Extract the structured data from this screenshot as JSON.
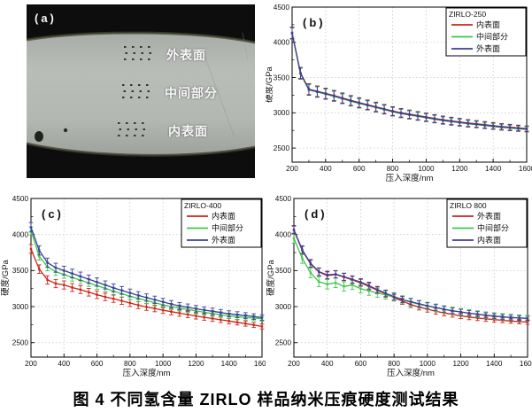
{
  "figure": {
    "caption": "图 4  不同氢含量 ZIRLO 样品纳米压痕硬度测试结果"
  },
  "panel_a": {
    "label": "(a)",
    "regions": [
      {
        "label": "外表面"
      },
      {
        "label": "中间部分"
      },
      {
        "label": "内表面"
      }
    ]
  },
  "colors": {
    "red": "#cf2318",
    "green": "#3ec84a",
    "blue": "#3b3e9b",
    "grid": "#c9c9c9",
    "axis": "#000000"
  },
  "chart_data": [
    {
      "id": "zirlo-250",
      "type": "line",
      "panel_label": "(b)",
      "legend_title": "ZIRLO-250",
      "legend_position": "top-right",
      "grid": true,
      "xlabel": "压入深度/nm",
      "ylabel": "硬度/GPa",
      "xlim": [
        200,
        1600
      ],
      "ylim": [
        2300,
        4500
      ],
      "xticks": [
        200,
        400,
        600,
        800,
        1000,
        1200,
        1400,
        1600
      ],
      "yticks": [
        2500,
        3000,
        3500,
        4000,
        4500
      ],
      "x": [
        200,
        250,
        300,
        350,
        400,
        450,
        500,
        550,
        600,
        650,
        700,
        750,
        800,
        850,
        900,
        950,
        1000,
        1050,
        1100,
        1150,
        1200,
        1250,
        1300,
        1350,
        1400,
        1450,
        1500,
        1550,
        1600
      ],
      "series": [
        {
          "name": "内表面",
          "color": "red",
          "values": [
            4136,
            3566,
            3336,
            3306,
            3276,
            3246,
            3211,
            3176,
            3146,
            3116,
            3086,
            3056,
            3026,
            3001,
            2981,
            2961,
            2941,
            2921,
            2901,
            2886,
            2871,
            2856,
            2844,
            2831,
            2818,
            2806,
            2796,
            2786,
            2776
          ],
          "err": {
            "start": 80,
            "end": 38
          }
        },
        {
          "name": "中间部分",
          "color": "green",
          "values": [
            4124,
            3554,
            3324,
            3294,
            3264,
            3234,
            3199,
            3164,
            3134,
            3104,
            3074,
            3044,
            3014,
            2989,
            2969,
            2949,
            2929,
            2909,
            2889,
            2874,
            2859,
            2844,
            2832,
            2819,
            2806,
            2794,
            2784,
            2774,
            2764
          ],
          "err": {
            "start": 78,
            "end": 36
          }
        },
        {
          "name": "外表面",
          "color": "blue",
          "values": [
            4130,
            3560,
            3330,
            3300,
            3270,
            3240,
            3205,
            3170,
            3140,
            3110,
            3080,
            3050,
            3020,
            2995,
            2975,
            2955,
            2935,
            2915,
            2895,
            2880,
            2865,
            2850,
            2838,
            2825,
            2812,
            2800,
            2790,
            2780,
            2770
          ],
          "err": {
            "start": 82,
            "end": 40
          }
        }
      ]
    },
    {
      "id": "zirlo-400",
      "type": "line",
      "panel_label": "(c)",
      "legend_title": "ZIRLO-400",
      "legend_position": "top-right",
      "grid": true,
      "xlabel": "压入深度/nm",
      "ylabel": "硬度/GPa",
      "xlim": [
        200,
        1600
      ],
      "ylim": [
        2300,
        4500
      ],
      "xticks": [
        200,
        400,
        600,
        800,
        1000,
        1200,
        1400,
        1600
      ],
      "yticks": [
        2500,
        3000,
        3500,
        4000,
        4500
      ],
      "x": [
        200,
        250,
        300,
        350,
        400,
        450,
        500,
        550,
        600,
        650,
        700,
        750,
        800,
        850,
        900,
        950,
        1000,
        1050,
        1100,
        1150,
        1200,
        1250,
        1300,
        1350,
        1400,
        1450,
        1500,
        1550,
        1600
      ],
      "series": [
        {
          "name": "内表面",
          "color": "red",
          "values": [
            3800,
            3520,
            3370,
            3320,
            3300,
            3265,
            3235,
            3200,
            3165,
            3135,
            3110,
            3080,
            3050,
            3020,
            2995,
            2975,
            2950,
            2930,
            2910,
            2890,
            2870,
            2852,
            2835,
            2818,
            2800,
            2782,
            2765,
            2745,
            2725
          ],
          "err": {
            "start": 60,
            "end": 34
          }
        },
        {
          "name": "中间部分",
          "color": "green",
          "values": [
            4050,
            3700,
            3550,
            3485,
            3445,
            3405,
            3365,
            3330,
            3290,
            3255,
            3215,
            3180,
            3145,
            3115,
            3085,
            3055,
            3025,
            3000,
            2980,
            2960,
            2940,
            2922,
            2905,
            2888,
            2872,
            2860,
            2850,
            2840,
            2832
          ],
          "err": {
            "start": 55,
            "end": 34
          }
        },
        {
          "name": "外表面",
          "color": "blue",
          "values": [
            4100,
            3780,
            3610,
            3540,
            3500,
            3460,
            3420,
            3380,
            3340,
            3300,
            3260,
            3225,
            3190,
            3155,
            3125,
            3095,
            3065,
            3035,
            3010,
            2990,
            2970,
            2952,
            2935,
            2918,
            2900,
            2888,
            2876,
            2862,
            2848
          ],
          "err": {
            "start": 65,
            "end": 38
          }
        }
      ]
    },
    {
      "id": "zirlo-800",
      "type": "line",
      "panel_label": "(d)",
      "legend_title": "ZIRLO 800",
      "legend_position": "top-right",
      "grid": true,
      "xlabel": "压入深度/nm",
      "ylabel": "硬度/GPa",
      "xlim": [
        200,
        1600
      ],
      "ylim": [
        2300,
        4500
      ],
      "xticks": [
        200,
        400,
        600,
        800,
        1000,
        1200,
        1400,
        1600
      ],
      "yticks": [
        2500,
        3000,
        3500,
        4000,
        4500
      ],
      "x": [
        200,
        250,
        300,
        350,
        400,
        450,
        500,
        550,
        600,
        650,
        700,
        750,
        800,
        850,
        900,
        950,
        1000,
        1050,
        1100,
        1150,
        1200,
        1250,
        1300,
        1350,
        1400,
        1450,
        1500,
        1550,
        1600
      ],
      "series": [
        {
          "name": "外表面",
          "color": "red",
          "values": [
            4060,
            3780,
            3590,
            3480,
            3430,
            3445,
            3410,
            3370,
            3330,
            3280,
            3225,
            3175,
            3125,
            3075,
            3030,
            2995,
            2965,
            2935,
            2912,
            2892,
            2872,
            2855,
            2842,
            2830,
            2820,
            2810,
            2800,
            2792,
            2785
          ],
          "err": {
            "start": 55,
            "end": 30
          }
        },
        {
          "name": "中间部分",
          "color": "green",
          "values": [
            3950,
            3670,
            3470,
            3345,
            3310,
            3330,
            3280,
            3300,
            3250,
            3218,
            3190,
            3162,
            3135,
            3095,
            3062,
            3032,
            3008,
            2985,
            2962,
            2942,
            2925,
            2910,
            2896,
            2882,
            2870,
            2860,
            2852,
            2845,
            2840
          ],
          "err": {
            "start": 70,
            "end": 40
          }
        },
        {
          "name": "内表面",
          "color": "blue",
          "values": [
            4070,
            3790,
            3600,
            3485,
            3440,
            3450,
            3415,
            3378,
            3340,
            3292,
            3235,
            3185,
            3140,
            3098,
            3068,
            3040,
            3012,
            2988,
            2964,
            2944,
            2926,
            2910,
            2895,
            2880,
            2868,
            2858,
            2848,
            2842,
            2836
          ],
          "err": {
            "start": 55,
            "end": 30
          }
        }
      ]
    }
  ]
}
